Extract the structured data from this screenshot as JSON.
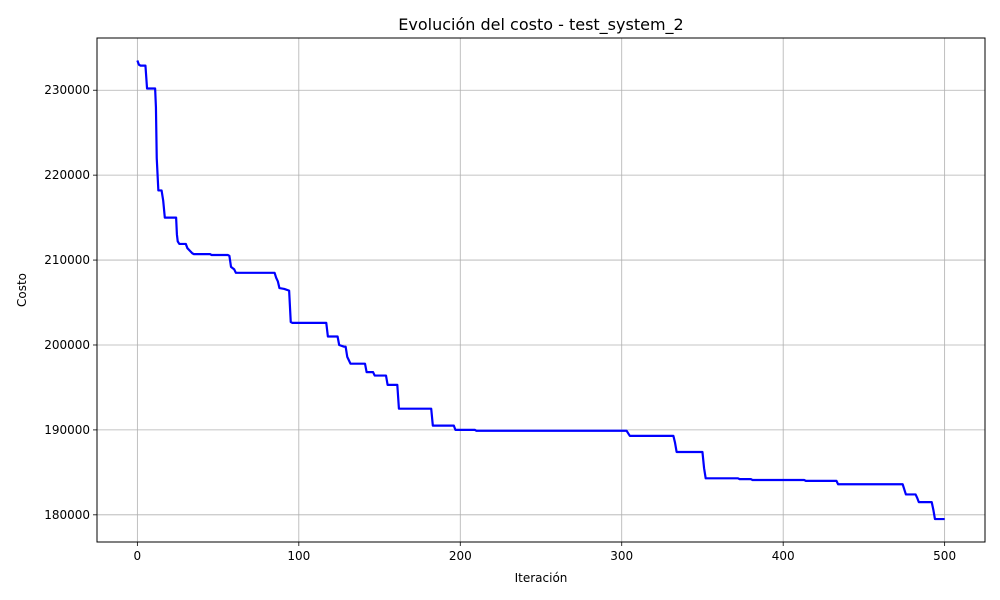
{
  "chart_data": {
    "type": "line",
    "title": "Evolución del costo - test_system_2",
    "xlabel": "Iteración",
    "ylabel": "Costo",
    "xlim": [
      -25,
      525
    ],
    "ylim": [
      176800,
      236150
    ],
    "x_ticks": [
      0,
      100,
      200,
      300,
      400,
      500
    ],
    "y_ticks": [
      180000,
      190000,
      200000,
      210000,
      220000,
      230000
    ],
    "grid": true,
    "series": [
      {
        "color": "#0000ff",
        "x": [
          0,
          1,
          2,
          5,
          6,
          11,
          11.5,
          12,
          13,
          15,
          16,
          17,
          24,
          24.5,
          25,
          26,
          30,
          31,
          32,
          34,
          35,
          45,
          46,
          56,
          57,
          58,
          60,
          61,
          85,
          86,
          87,
          88,
          91,
          94,
          95,
          96,
          117,
          118,
          124,
          125,
          128,
          129,
          130,
          131,
          132,
          141,
          142,
          146,
          147,
          154,
          155,
          161,
          162,
          182,
          183,
          196,
          197,
          209,
          210,
          303,
          304,
          305,
          332,
          333,
          334,
          350,
          351,
          352,
          372,
          373,
          380,
          381,
          413,
          414,
          433,
          434,
          474,
          475,
          476,
          482,
          483,
          484,
          492,
          493,
          494,
          500
        ],
        "y": [
          233500,
          233000,
          232900,
          232900,
          230200,
          230200,
          228000,
          222000,
          218200,
          218200,
          217000,
          215000,
          215000,
          213000,
          212200,
          211900,
          211900,
          211400,
          211200,
          210800,
          210700,
          210700,
          210600,
          210600,
          210500,
          209200,
          208900,
          208500,
          208500,
          207900,
          207500,
          206700,
          206600,
          206400,
          202700,
          202600,
          202600,
          201000,
          201000,
          200000,
          199800,
          199800,
          198600,
          198200,
          197800,
          197800,
          196800,
          196800,
          196400,
          196400,
          195300,
          195300,
          192500,
          192500,
          190500,
          190500,
          190000,
          190000,
          189900,
          189900,
          189600,
          189300,
          189300,
          188500,
          187400,
          187400,
          185500,
          184300,
          184300,
          184200,
          184200,
          184100,
          184100,
          184000,
          184000,
          183600,
          183600,
          183000,
          182400,
          182400,
          182000,
          181500,
          181500,
          180600,
          179500,
          179500
        ]
      }
    ]
  }
}
